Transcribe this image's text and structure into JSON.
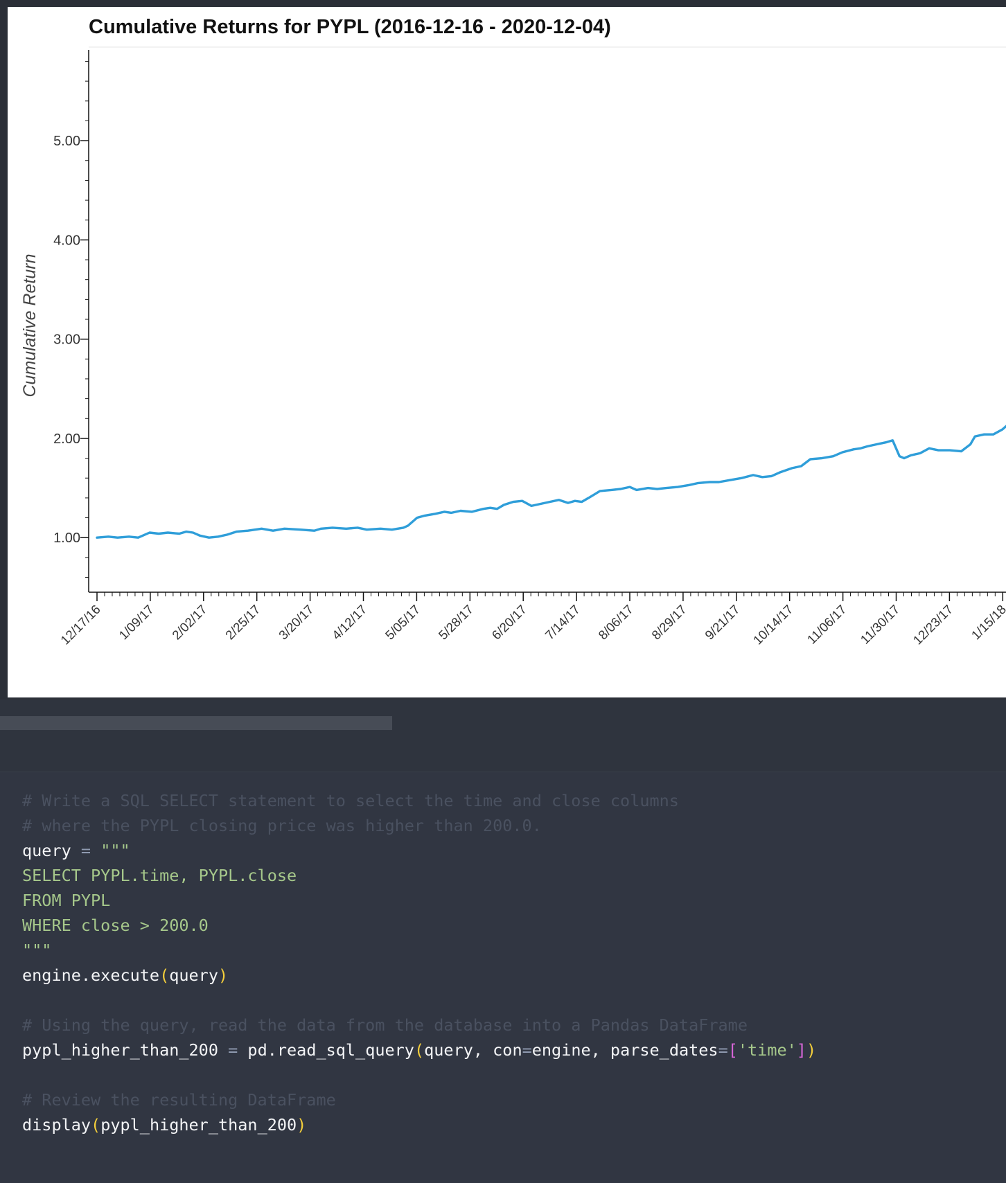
{
  "chart_data": {
    "type": "line",
    "title": "Cumulative Returns for PYPL (2016-12-16 - 2020-12-04)",
    "xlabel": "",
    "ylabel": "Cumulative Return",
    "ylim": [
      0.45,
      5.95
    ],
    "yticks": [
      1.0,
      2.0,
      3.0,
      4.0,
      5.0
    ],
    "ytick_labels": [
      "1.00",
      "2.00",
      "3.00",
      "4.00",
      "5.00"
    ],
    "xlim_visible": [
      "2016-12-16",
      "2018-01-18"
    ],
    "xtick_labels": [
      "12/17/16",
      "1/09/17",
      "2/02/17",
      "2/25/17",
      "3/20/17",
      "4/12/17",
      "5/05/17",
      "5/28/17",
      "6/20/17",
      "7/14/17",
      "8/06/17",
      "8/29/17",
      "9/21/17",
      "10/14/17",
      "11/06/17",
      "11/30/17",
      "12/23/17",
      "1/15/18"
    ],
    "line_color": "#2f9ed9",
    "grid": false,
    "series": [
      {
        "name": "",
        "x": [
          "2016-12-16",
          "2016-12-21",
          "2016-12-25",
          "2016-12-30",
          "2017-01-03",
          "2017-01-08",
          "2017-01-12",
          "2017-01-16",
          "2017-01-21",
          "2017-01-24",
          "2017-01-27",
          "2017-01-30",
          "2017-02-03",
          "2017-02-07",
          "2017-02-11",
          "2017-02-15",
          "2017-02-20",
          "2017-02-26",
          "2017-03-03",
          "2017-03-08",
          "2017-03-15",
          "2017-03-21",
          "2017-03-24",
          "2017-03-29",
          "2017-04-04",
          "2017-04-09",
          "2017-04-13",
          "2017-04-19",
          "2017-04-24",
          "2017-04-29",
          "2017-05-01",
          "2017-05-05",
          "2017-05-08",
          "2017-05-13",
          "2017-05-17",
          "2017-05-20",
          "2017-05-24",
          "2017-05-29",
          "2017-06-03",
          "2017-06-06",
          "2017-06-09",
          "2017-06-12",
          "2017-06-16",
          "2017-06-20",
          "2017-06-24",
          "2017-06-28",
          "2017-07-02",
          "2017-07-06",
          "2017-07-10",
          "2017-07-13",
          "2017-07-16",
          "2017-07-19",
          "2017-07-24",
          "2017-07-29",
          "2017-08-02",
          "2017-08-06",
          "2017-08-09",
          "2017-08-14",
          "2017-08-18",
          "2017-08-22",
          "2017-08-27",
          "2017-09-01",
          "2017-09-05",
          "2017-09-10",
          "2017-09-14",
          "2017-09-19",
          "2017-09-24",
          "2017-09-29",
          "2017-10-03",
          "2017-10-07",
          "2017-10-11",
          "2017-10-16",
          "2017-10-20",
          "2017-10-24",
          "2017-10-29",
          "2017-11-03",
          "2017-11-07",
          "2017-11-12",
          "2017-11-15",
          "2017-11-18",
          "2017-11-22",
          "2017-11-26",
          "2017-11-29",
          "2017-12-02",
          "2017-12-04",
          "2017-12-07",
          "2017-12-11",
          "2017-12-15",
          "2017-12-19",
          "2017-12-24",
          "2017-12-29",
          "2018-01-02",
          "2018-01-04",
          "2018-01-08",
          "2018-01-12",
          "2018-01-16",
          "2018-01-18"
        ],
        "values": [
          1.0,
          1.01,
          1.0,
          1.01,
          1.0,
          1.05,
          1.04,
          1.05,
          1.04,
          1.06,
          1.05,
          1.02,
          1.0,
          1.01,
          1.03,
          1.06,
          1.07,
          1.09,
          1.07,
          1.09,
          1.08,
          1.07,
          1.09,
          1.1,
          1.09,
          1.1,
          1.08,
          1.09,
          1.08,
          1.1,
          1.12,
          1.2,
          1.22,
          1.24,
          1.26,
          1.25,
          1.27,
          1.26,
          1.29,
          1.3,
          1.29,
          1.33,
          1.36,
          1.37,
          1.32,
          1.34,
          1.36,
          1.38,
          1.35,
          1.37,
          1.36,
          1.4,
          1.47,
          1.48,
          1.49,
          1.51,
          1.48,
          1.5,
          1.49,
          1.5,
          1.51,
          1.53,
          1.55,
          1.56,
          1.56,
          1.58,
          1.6,
          1.63,
          1.61,
          1.62,
          1.66,
          1.7,
          1.72,
          1.79,
          1.8,
          1.82,
          1.86,
          1.89,
          1.9,
          1.92,
          1.94,
          1.96,
          1.98,
          1.82,
          1.8,
          1.83,
          1.85,
          1.9,
          1.88,
          1.88,
          1.87,
          1.94,
          2.02,
          2.04,
          2.04,
          2.09,
          2.13
        ]
      }
    ]
  },
  "code_cell": {
    "lines": [
      [
        {
          "c": "cm",
          "t": "# Write a SQL SELECT statement to select the time and close columns"
        }
      ],
      [
        {
          "c": "cm",
          "t": "# where the PYPL closing price was higher than 200.0."
        }
      ],
      [
        {
          "c": "",
          "t": "query "
        },
        {
          "c": "op",
          "t": "="
        },
        {
          "c": "str",
          "t": " \"\"\""
        }
      ],
      [
        {
          "c": "str",
          "t": "SELECT PYPL.time, PYPL.close"
        }
      ],
      [
        {
          "c": "str",
          "t": "FROM PYPL"
        }
      ],
      [
        {
          "c": "str",
          "t": "WHERE close > 200.0"
        }
      ],
      [
        {
          "c": "str",
          "t": "\"\"\""
        }
      ],
      [
        {
          "c": "",
          "t": "engine.execute"
        },
        {
          "c": "pn",
          "t": "("
        },
        {
          "c": "",
          "t": "query"
        },
        {
          "c": "pn",
          "t": ")"
        }
      ],
      [
        {
          "c": "",
          "t": ""
        }
      ],
      [
        {
          "c": "cm",
          "t": "# Using the query, read the data from the database into a Pandas DataFrame"
        }
      ],
      [
        {
          "c": "",
          "t": "pypl_higher_than_200 "
        },
        {
          "c": "op",
          "t": "="
        },
        {
          "c": "",
          "t": " pd.read_sql_query"
        },
        {
          "c": "pn",
          "t": "("
        },
        {
          "c": "",
          "t": "query, con"
        },
        {
          "c": "op",
          "t": "="
        },
        {
          "c": "",
          "t": "engine, parse_dates"
        },
        {
          "c": "op",
          "t": "="
        },
        {
          "c": "br",
          "t": "["
        },
        {
          "c": "sq",
          "t": "'time'"
        },
        {
          "c": "br",
          "t": "]"
        },
        {
          "c": "pn",
          "t": ")"
        }
      ],
      [
        {
          "c": "",
          "t": ""
        }
      ],
      [
        {
          "c": "cm",
          "t": "# Review the resulting DataFrame"
        }
      ],
      [
        {
          "c": "",
          "t": "display"
        },
        {
          "c": "pn",
          "t": "("
        },
        {
          "c": "",
          "t": "pypl_higher_than_200"
        },
        {
          "c": "pn",
          "t": ")"
        }
      ]
    ]
  }
}
